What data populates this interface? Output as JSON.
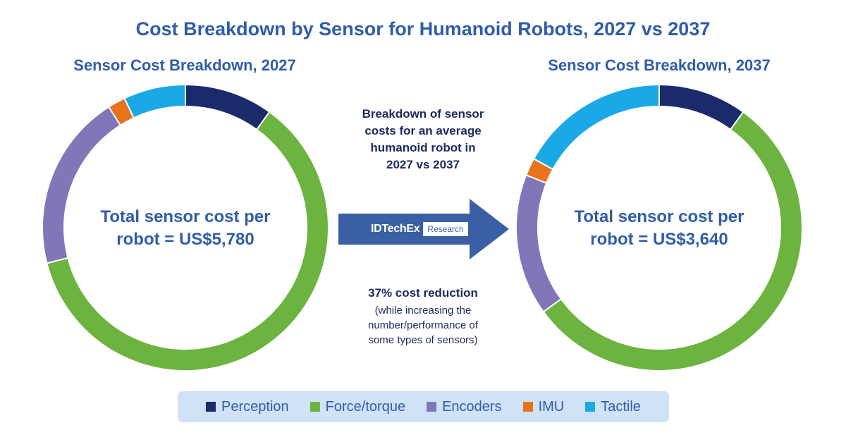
{
  "title": "Cost Breakdown by Sensor for Humanoid Robots, 2027 vs 2037",
  "chart_data": [
    {
      "type": "pie",
      "donut": true,
      "title": "Sensor Cost Breakdown, 2027",
      "center_text": [
        "Total sensor cost per",
        "robot = US$5,780"
      ],
      "categories": [
        "Perception",
        "Force/torque",
        "Encoders",
        "IMU",
        "Tactile"
      ],
      "values": [
        10,
        61,
        20,
        2,
        7
      ],
      "unit": "% of total sensor cost (approx.)",
      "total": "US$5,780"
    },
    {
      "type": "pie",
      "donut": true,
      "title": "Sensor Cost Breakdown, 2037",
      "center_text": [
        "Total sensor cost per",
        "robot = US$3,640"
      ],
      "categories": [
        "Perception",
        "Force/torque",
        "Encoders",
        "IMU",
        "Tactile"
      ],
      "values": [
        10,
        55,
        16,
        2,
        17
      ],
      "unit": "% of total sensor cost (approx.)",
      "total": "US$3,640"
    }
  ],
  "colors": {
    "Perception": "#1b2a6b",
    "Force/torque": "#6db33f",
    "Encoders": "#8276b8",
    "IMU": "#e8731c",
    "Tactile": "#1aa8e6",
    "title": "#2f5da8",
    "arrow": "#3a5fa4"
  },
  "middle": {
    "description": [
      "Breakdown of sensor",
      "costs for an average",
      "humanoid robot in",
      "2027 vs 2037"
    ],
    "reduction_headline": "37% cost reduction",
    "reduction_note": [
      "(while increasing the",
      "number/performance of",
      "some types of sensors)"
    ],
    "brand_name": "IDTechEx",
    "brand_tag": "Research"
  },
  "legend": [
    "Perception",
    "Force/torque",
    "Encoders",
    "IMU",
    "Tactile"
  ]
}
